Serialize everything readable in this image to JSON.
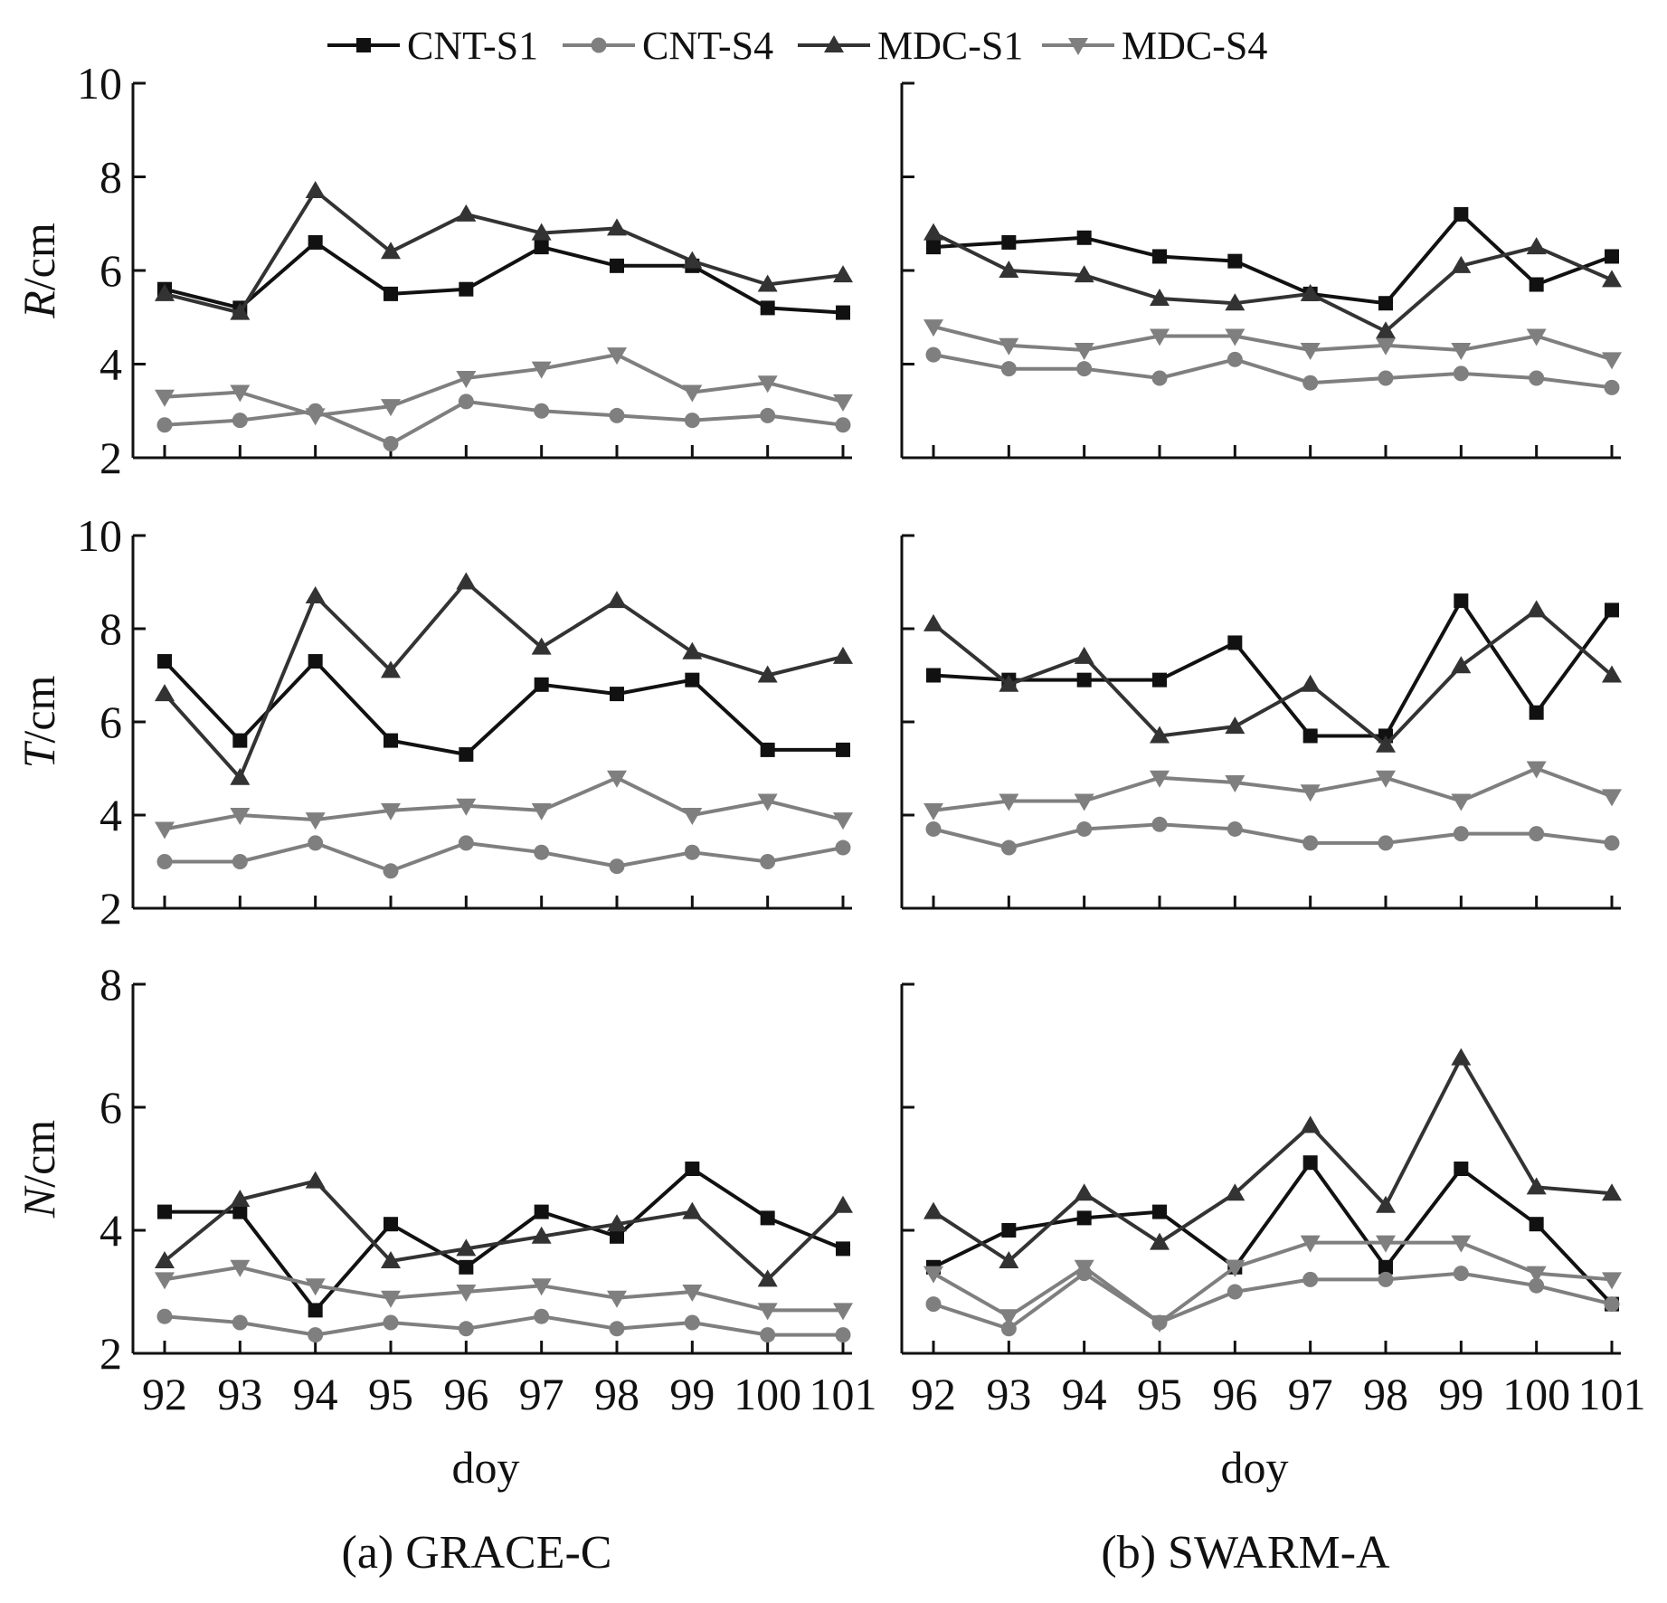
{
  "chart_data": {
    "type": "line",
    "legend": {
      "placement": "top-center",
      "entries": [
        {
          "name": "CNT-S1",
          "marker": "square",
          "color": "#111111"
        },
        {
          "name": "CNT-S4",
          "marker": "circle",
          "color": "#7f7f7f"
        },
        {
          "name": "MDC-S1",
          "marker": "triangle-up",
          "color": "#333333"
        },
        {
          "name": "MDC-S4",
          "marker": "triangle-down",
          "color": "#7f7f7f"
        }
      ]
    },
    "x": [
      92,
      93,
      94,
      95,
      96,
      97,
      98,
      99,
      100,
      101
    ],
    "x_tick_labels": [
      "92",
      "93",
      "94",
      "95",
      "96",
      "97",
      "98",
      "99",
      "100",
      "101"
    ],
    "xlabel": "doy",
    "panels": [
      {
        "caption": "(a) GRACE-C",
        "rows": [
          {
            "ylabel_var": "R",
            "ylabel_unit": "/cm",
            "ylim": [
              2,
              10
            ],
            "yticks": [
              2,
              4,
              6,
              8,
              10
            ],
            "series": [
              {
                "name": "CNT-S1",
                "values": [
                  5.6,
                  5.2,
                  6.6,
                  5.5,
                  5.6,
                  6.5,
                  6.1,
                  6.1,
                  5.2,
                  5.1
                ]
              },
              {
                "name": "CNT-S4",
                "values": [
                  2.7,
                  2.8,
                  3.0,
                  2.3,
                  3.2,
                  3.0,
                  2.9,
                  2.8,
                  2.9,
                  2.7
                ]
              },
              {
                "name": "MDC-S1",
                "values": [
                  5.5,
                  5.1,
                  7.7,
                  6.4,
                  7.2,
                  6.8,
                  6.9,
                  6.2,
                  5.7,
                  5.9
                ]
              },
              {
                "name": "MDC-S4",
                "values": [
                  3.3,
                  3.4,
                  2.9,
                  3.1,
                  3.7,
                  3.9,
                  4.2,
                  3.4,
                  3.6,
                  3.2
                ]
              }
            ]
          },
          {
            "ylabel_var": "T",
            "ylabel_unit": "/cm",
            "ylim": [
              2,
              10
            ],
            "yticks": [
              2,
              4,
              6,
              8,
              10
            ],
            "series": [
              {
                "name": "CNT-S1",
                "values": [
                  7.3,
                  5.6,
                  7.3,
                  5.6,
                  5.3,
                  6.8,
                  6.6,
                  6.9,
                  5.4,
                  5.4
                ]
              },
              {
                "name": "CNT-S4",
                "values": [
                  3.0,
                  3.0,
                  3.4,
                  2.8,
                  3.4,
                  3.2,
                  2.9,
                  3.2,
                  3.0,
                  3.3
                ]
              },
              {
                "name": "MDC-S1",
                "values": [
                  6.6,
                  4.8,
                  8.7,
                  7.1,
                  9.0,
                  7.6,
                  8.6,
                  7.5,
                  7.0,
                  7.4
                ]
              },
              {
                "name": "MDC-S4",
                "values": [
                  3.7,
                  4.0,
                  3.9,
                  4.1,
                  4.2,
                  4.1,
                  4.8,
                  4.0,
                  4.3,
                  3.9
                ]
              }
            ]
          },
          {
            "ylabel_var": "N",
            "ylabel_unit": "/cm",
            "ylim": [
              2,
              8
            ],
            "yticks": [
              2,
              4,
              6,
              8
            ],
            "series": [
              {
                "name": "CNT-S1",
                "values": [
                  4.3,
                  4.3,
                  2.7,
                  4.1,
                  3.4,
                  4.3,
                  3.9,
                  5.0,
                  4.2,
                  3.7
                ]
              },
              {
                "name": "CNT-S4",
                "values": [
                  2.6,
                  2.5,
                  2.3,
                  2.5,
                  2.4,
                  2.6,
                  2.4,
                  2.5,
                  2.3,
                  2.3
                ]
              },
              {
                "name": "MDC-S1",
                "values": [
                  3.5,
                  4.5,
                  4.8,
                  3.5,
                  3.7,
                  3.9,
                  4.1,
                  4.3,
                  3.2,
                  4.4
                ]
              },
              {
                "name": "MDC-S4",
                "values": [
                  3.2,
                  3.4,
                  3.1,
                  2.9,
                  3.0,
                  3.1,
                  2.9,
                  3.0,
                  2.7,
                  2.7
                ]
              }
            ]
          }
        ]
      },
      {
        "caption": "(b) SWARM-A",
        "rows": [
          {
            "ylabel_var": "",
            "ylabel_unit": "",
            "ylim": [
              2,
              10
            ],
            "yticks": [
              2,
              4,
              6,
              8,
              10
            ],
            "series": [
              {
                "name": "CNT-S1",
                "values": [
                  6.5,
                  6.6,
                  6.7,
                  6.3,
                  6.2,
                  5.5,
                  5.3,
                  7.2,
                  5.7,
                  6.3
                ]
              },
              {
                "name": "CNT-S4",
                "values": [
                  4.2,
                  3.9,
                  3.9,
                  3.7,
                  4.1,
                  3.6,
                  3.7,
                  3.8,
                  3.7,
                  3.5
                ]
              },
              {
                "name": "MDC-S1",
                "values": [
                  6.8,
                  6.0,
                  5.9,
                  5.4,
                  5.3,
                  5.5,
                  4.7,
                  6.1,
                  6.5,
                  5.8
                ]
              },
              {
                "name": "MDC-S4",
                "values": [
                  4.8,
                  4.4,
                  4.3,
                  4.6,
                  4.6,
                  4.3,
                  4.4,
                  4.3,
                  4.6,
                  4.1
                ]
              }
            ]
          },
          {
            "ylabel_var": "",
            "ylabel_unit": "",
            "ylim": [
              2,
              10
            ],
            "yticks": [
              2,
              4,
              6,
              8,
              10
            ],
            "series": [
              {
                "name": "CNT-S1",
                "values": [
                  7.0,
                  6.9,
                  6.9,
                  6.9,
                  7.7,
                  5.7,
                  5.7,
                  8.6,
                  6.2,
                  8.4
                ]
              },
              {
                "name": "CNT-S4",
                "values": [
                  3.7,
                  3.3,
                  3.7,
                  3.8,
                  3.7,
                  3.4,
                  3.4,
                  3.6,
                  3.6,
                  3.4
                ]
              },
              {
                "name": "MDC-S1",
                "values": [
                  8.1,
                  6.8,
                  7.4,
                  5.7,
                  5.9,
                  6.8,
                  5.5,
                  7.2,
                  8.4,
                  7.0
                ]
              },
              {
                "name": "MDC-S4",
                "values": [
                  4.1,
                  4.3,
                  4.3,
                  4.8,
                  4.7,
                  4.5,
                  4.8,
                  4.3,
                  5.0,
                  4.4
                ]
              }
            ]
          },
          {
            "ylabel_var": "",
            "ylabel_unit": "",
            "ylim": [
              2,
              8
            ],
            "yticks": [
              2,
              4,
              6,
              8
            ],
            "series": [
              {
                "name": "CNT-S1",
                "values": [
                  3.4,
                  4.0,
                  4.2,
                  4.3,
                  3.4,
                  5.1,
                  3.4,
                  5.0,
                  4.1,
                  2.8
                ]
              },
              {
                "name": "CNT-S4",
                "values": [
                  2.8,
                  2.4,
                  3.3,
                  2.5,
                  3.0,
                  3.2,
                  3.2,
                  3.3,
                  3.1,
                  2.8
                ]
              },
              {
                "name": "MDC-S1",
                "values": [
                  4.3,
                  3.5,
                  4.6,
                  3.8,
                  4.6,
                  5.7,
                  4.4,
                  6.8,
                  4.7,
                  4.6
                ]
              },
              {
                "name": "MDC-S4",
                "values": [
                  3.3,
                  2.6,
                  3.4,
                  2.5,
                  3.4,
                  3.8,
                  3.8,
                  3.8,
                  3.3,
                  3.2
                ]
              }
            ]
          }
        ]
      }
    ]
  }
}
